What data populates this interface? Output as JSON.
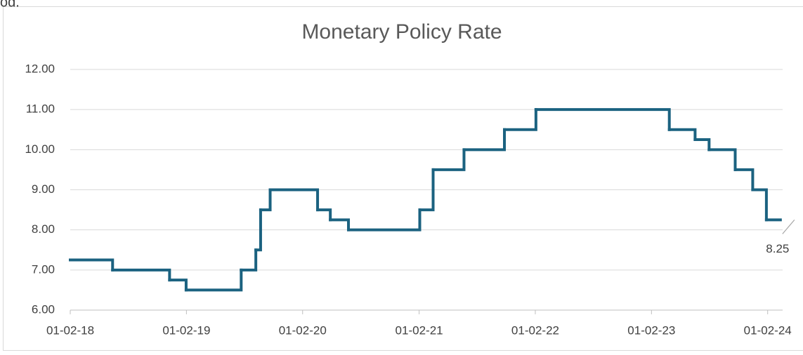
{
  "fragment": "od.",
  "chart_data": {
    "type": "step",
    "title": "Monetary Policy Rate",
    "series": [
      {
        "name": "Monetary Policy Rate",
        "color": "#1b6280",
        "x": [
          "2018-02-01",
          "2018-06-14",
          "2018-12-10",
          "2019-01-31",
          "2019-07-23",
          "2019-09-07",
          "2019-09-22",
          "2019-10-22",
          "2020-03-19",
          "2020-04-28",
          "2020-06-24",
          "2021-02-03",
          "2021-03-17",
          "2021-06-22",
          "2021-10-27",
          "2022-02-03",
          "2023-03-29",
          "2023-06-18",
          "2023-08-01",
          "2023-10-22",
          "2023-12-16",
          "2024-01-28",
          "2024-03-12"
        ],
        "values": [
          7.25,
          7.0,
          6.75,
          6.5,
          7.0,
          7.5,
          8.5,
          9.0,
          8.5,
          8.25,
          8.0,
          8.5,
          9.5,
          10.0,
          10.5,
          11.0,
          10.5,
          10.25,
          10.0,
          9.5,
          9.0,
          8.25,
          8.25
        ]
      }
    ],
    "last_label": 22,
    "xlim": [
      "2018-02-01",
      "2024-03-19"
    ],
    "xticks": [
      {
        "value": "2018-02-01",
        "label": "01-02-18"
      },
      {
        "value": "2019-02-01",
        "label": "01-02-19"
      },
      {
        "value": "2020-02-01",
        "label": "01-02-20"
      },
      {
        "value": "2021-02-01",
        "label": "01-02-21"
      },
      {
        "value": "2022-02-01",
        "label": "01-02-22"
      },
      {
        "value": "2023-02-01",
        "label": "01-02-23"
      },
      {
        "value": "2024-02-01",
        "label": "01-02-24"
      }
    ],
    "ylim": [
      6,
      12
    ],
    "yticks": [
      {
        "value": 6,
        "label": "6.00"
      },
      {
        "value": 7,
        "label": "7.00"
      },
      {
        "value": 8,
        "label": "8.00"
      },
      {
        "value": 9,
        "label": "9.00"
      },
      {
        "value": 10,
        "label": "10.00"
      },
      {
        "value": 11,
        "label": "11.00"
      },
      {
        "value": 12,
        "label": "12.00"
      }
    ],
    "grid": true
  }
}
